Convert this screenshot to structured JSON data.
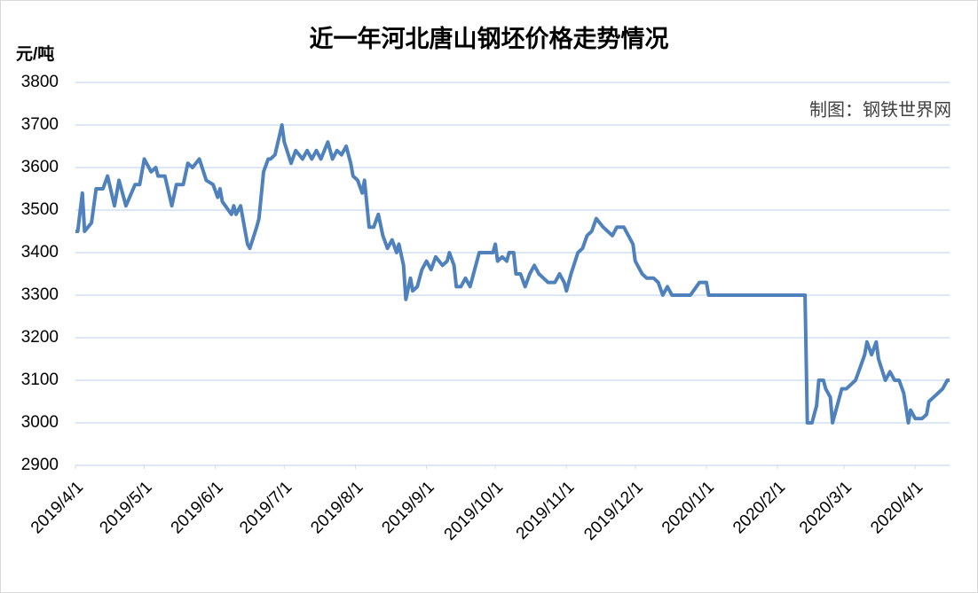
{
  "chart_data": {
    "type": "line",
    "title": "近一年河北唐山钢坯价格走势情况",
    "y_label": "元/吨",
    "annotation": "制图：钢铁世界网",
    "color": "#4f81bd",
    "grid": true,
    "xlim": [
      "2019/4/1",
      "2020/4/16"
    ],
    "xticks": [
      "2019/4/1",
      "2019/5/1",
      "2019/6/1",
      "2019/7/1",
      "2019/8/1",
      "2019/9/1",
      "2019/10/1",
      "2019/11/1",
      "2019/12/1",
      "2020/1/1",
      "2020/2/1",
      "2020/3/1",
      "2020/4/1"
    ],
    "ylim": [
      2900,
      3800
    ],
    "yticks": [
      2900,
      3000,
      3100,
      3200,
      3300,
      3400,
      3500,
      3600,
      3700,
      3800
    ],
    "x": [
      "2019/4/1",
      "2019/4/2",
      "2019/4/4",
      "2019/4/5",
      "2019/4/8",
      "2019/4/10",
      "2019/4/13",
      "2019/4/15",
      "2019/4/18",
      "2019/4/20",
      "2019/4/23",
      "2019/4/27",
      "2019/4/29",
      "2019/5/1",
      "2019/5/4",
      "2019/5/6",
      "2019/5/7",
      "2019/5/10",
      "2019/5/13",
      "2019/5/15",
      "2019/5/18",
      "2019/5/20",
      "2019/5/22",
      "2019/5/25",
      "2019/5/28",
      "2019/5/31",
      "2019/6/2",
      "2019/6/3",
      "2019/6/4",
      "2019/6/8",
      "2019/6/9",
      "2019/6/10",
      "2019/6/12",
      "2019/6/15",
      "2019/6/16",
      "2019/6/19",
      "2019/6/20",
      "2019/6/22",
      "2019/6/24",
      "2019/6/25",
      "2019/6/27",
      "2019/6/30",
      "2019/7/1",
      "2019/7/4",
      "2019/7/6",
      "2019/7/9",
      "2019/7/11",
      "2019/7/13",
      "2019/7/15",
      "2019/7/17",
      "2019/7/20",
      "2019/7/22",
      "2019/7/24",
      "2019/7/26",
      "2019/7/28",
      "2019/7/30",
      "2019/7/31",
      "2019/8/2",
      "2019/8/4",
      "2019/8/5",
      "2019/8/7",
      "2019/8/9",
      "2019/8/11",
      "2019/8/13",
      "2019/8/15",
      "2019/8/17",
      "2019/8/19",
      "2019/8/20",
      "2019/8/22",
      "2019/8/23",
      "2019/8/25",
      "2019/8/26",
      "2019/8/28",
      "2019/8/30",
      "2019/9/1",
      "2019/9/3",
      "2019/9/5",
      "2019/9/8",
      "2019/9/10",
      "2019/9/11",
      "2019/9/13",
      "2019/9/14",
      "2019/9/16",
      "2019/9/18",
      "2019/9/20",
      "2019/9/22",
      "2019/9/24",
      "2019/9/27",
      "2019/9/30",
      "2019/10/1",
      "2019/10/2",
      "2019/10/4",
      "2019/10/6",
      "2019/10/7",
      "2019/10/9",
      "2019/10/10",
      "2019/10/12",
      "2019/10/14",
      "2019/10/16",
      "2019/10/18",
      "2019/10/20",
      "2019/10/22",
      "2019/10/24",
      "2019/10/27",
      "2019/10/29",
      "2019/10/31",
      "2019/11/1",
      "2019/11/3",
      "2019/11/6",
      "2019/11/8",
      "2019/11/10",
      "2019/11/12",
      "2019/11/14",
      "2019/11/17",
      "2019/11/19",
      "2019/11/21",
      "2019/11/23",
      "2019/11/26",
      "2019/11/28",
      "2019/11/30",
      "2019/12/1",
      "2019/12/4",
      "2019/12/6",
      "2019/12/9",
      "2019/12/11",
      "2019/12/13",
      "2019/12/15",
      "2019/12/17",
      "2019/12/20",
      "2019/12/25",
      "2019/12/29",
      "2020/1/1",
      "2020/1/2",
      "2020/2/13",
      "2020/2/14",
      "2020/2/16",
      "2020/2/18",
      "2020/2/19",
      "2020/2/21",
      "2020/2/22",
      "2020/2/24",
      "2020/2/25",
      "2020/2/27",
      "2020/2/29",
      "2020/3/2",
      "2020/3/4",
      "2020/3/6",
      "2020/3/8",
      "2020/3/10",
      "2020/3/11",
      "2020/3/13",
      "2020/3/15",
      "2020/3/16",
      "2020/3/19",
      "2020/3/21",
      "2020/3/23",
      "2020/3/25",
      "2020/3/27",
      "2020/3/29",
      "2020/3/30",
      "2020/4/1",
      "2020/4/4",
      "2020/4/6",
      "2020/4/7",
      "2020/4/9",
      "2020/4/11",
      "2020/4/13",
      "2020/4/15",
      "2020/4/16"
    ],
    "values": [
      3450,
      3450,
      3540,
      3450,
      3470,
      3550,
      3550,
      3580,
      3510,
      3570,
      3510,
      3560,
      3560,
      3620,
      3590,
      3600,
      3580,
      3580,
      3510,
      3560,
      3560,
      3610,
      3600,
      3620,
      3570,
      3560,
      3530,
      3550,
      3520,
      3490,
      3510,
      3490,
      3510,
      3420,
      3410,
      3460,
      3480,
      3590,
      3620,
      3620,
      3630,
      3700,
      3660,
      3610,
      3640,
      3620,
      3640,
      3620,
      3640,
      3620,
      3660,
      3620,
      3640,
      3630,
      3650,
      3610,
      3580,
      3570,
      3540,
      3570,
      3460,
      3460,
      3490,
      3440,
      3410,
      3430,
      3400,
      3420,
      3370,
      3290,
      3340,
      3310,
      3320,
      3360,
      3380,
      3360,
      3390,
      3370,
      3380,
      3400,
      3370,
      3320,
      3320,
      3340,
      3320,
      3360,
      3400,
      3400,
      3400,
      3420,
      3380,
      3390,
      3380,
      3400,
      3400,
      3350,
      3350,
      3320,
      3350,
      3370,
      3350,
      3340,
      3330,
      3330,
      3350,
      3330,
      3310,
      3350,
      3400,
      3410,
      3440,
      3450,
      3480,
      3460,
      3450,
      3440,
      3460,
      3460,
      3440,
      3420,
      3380,
      3350,
      3340,
      3340,
      3330,
      3300,
      3320,
      3300,
      3300,
      3300,
      3330,
      3330,
      3300,
      3300,
      3000,
      3000,
      3040,
      3100,
      3100,
      3080,
      3060,
      3000,
      3040,
      3080,
      3080,
      3090,
      3100,
      3130,
      3160,
      3190,
      3160,
      3190,
      3150,
      3100,
      3120,
      3100,
      3100,
      3070,
      3000,
      3030,
      3010,
      3010,
      3020,
      3050,
      3060,
      3070,
      3080,
      3100,
      3100
    ]
  }
}
